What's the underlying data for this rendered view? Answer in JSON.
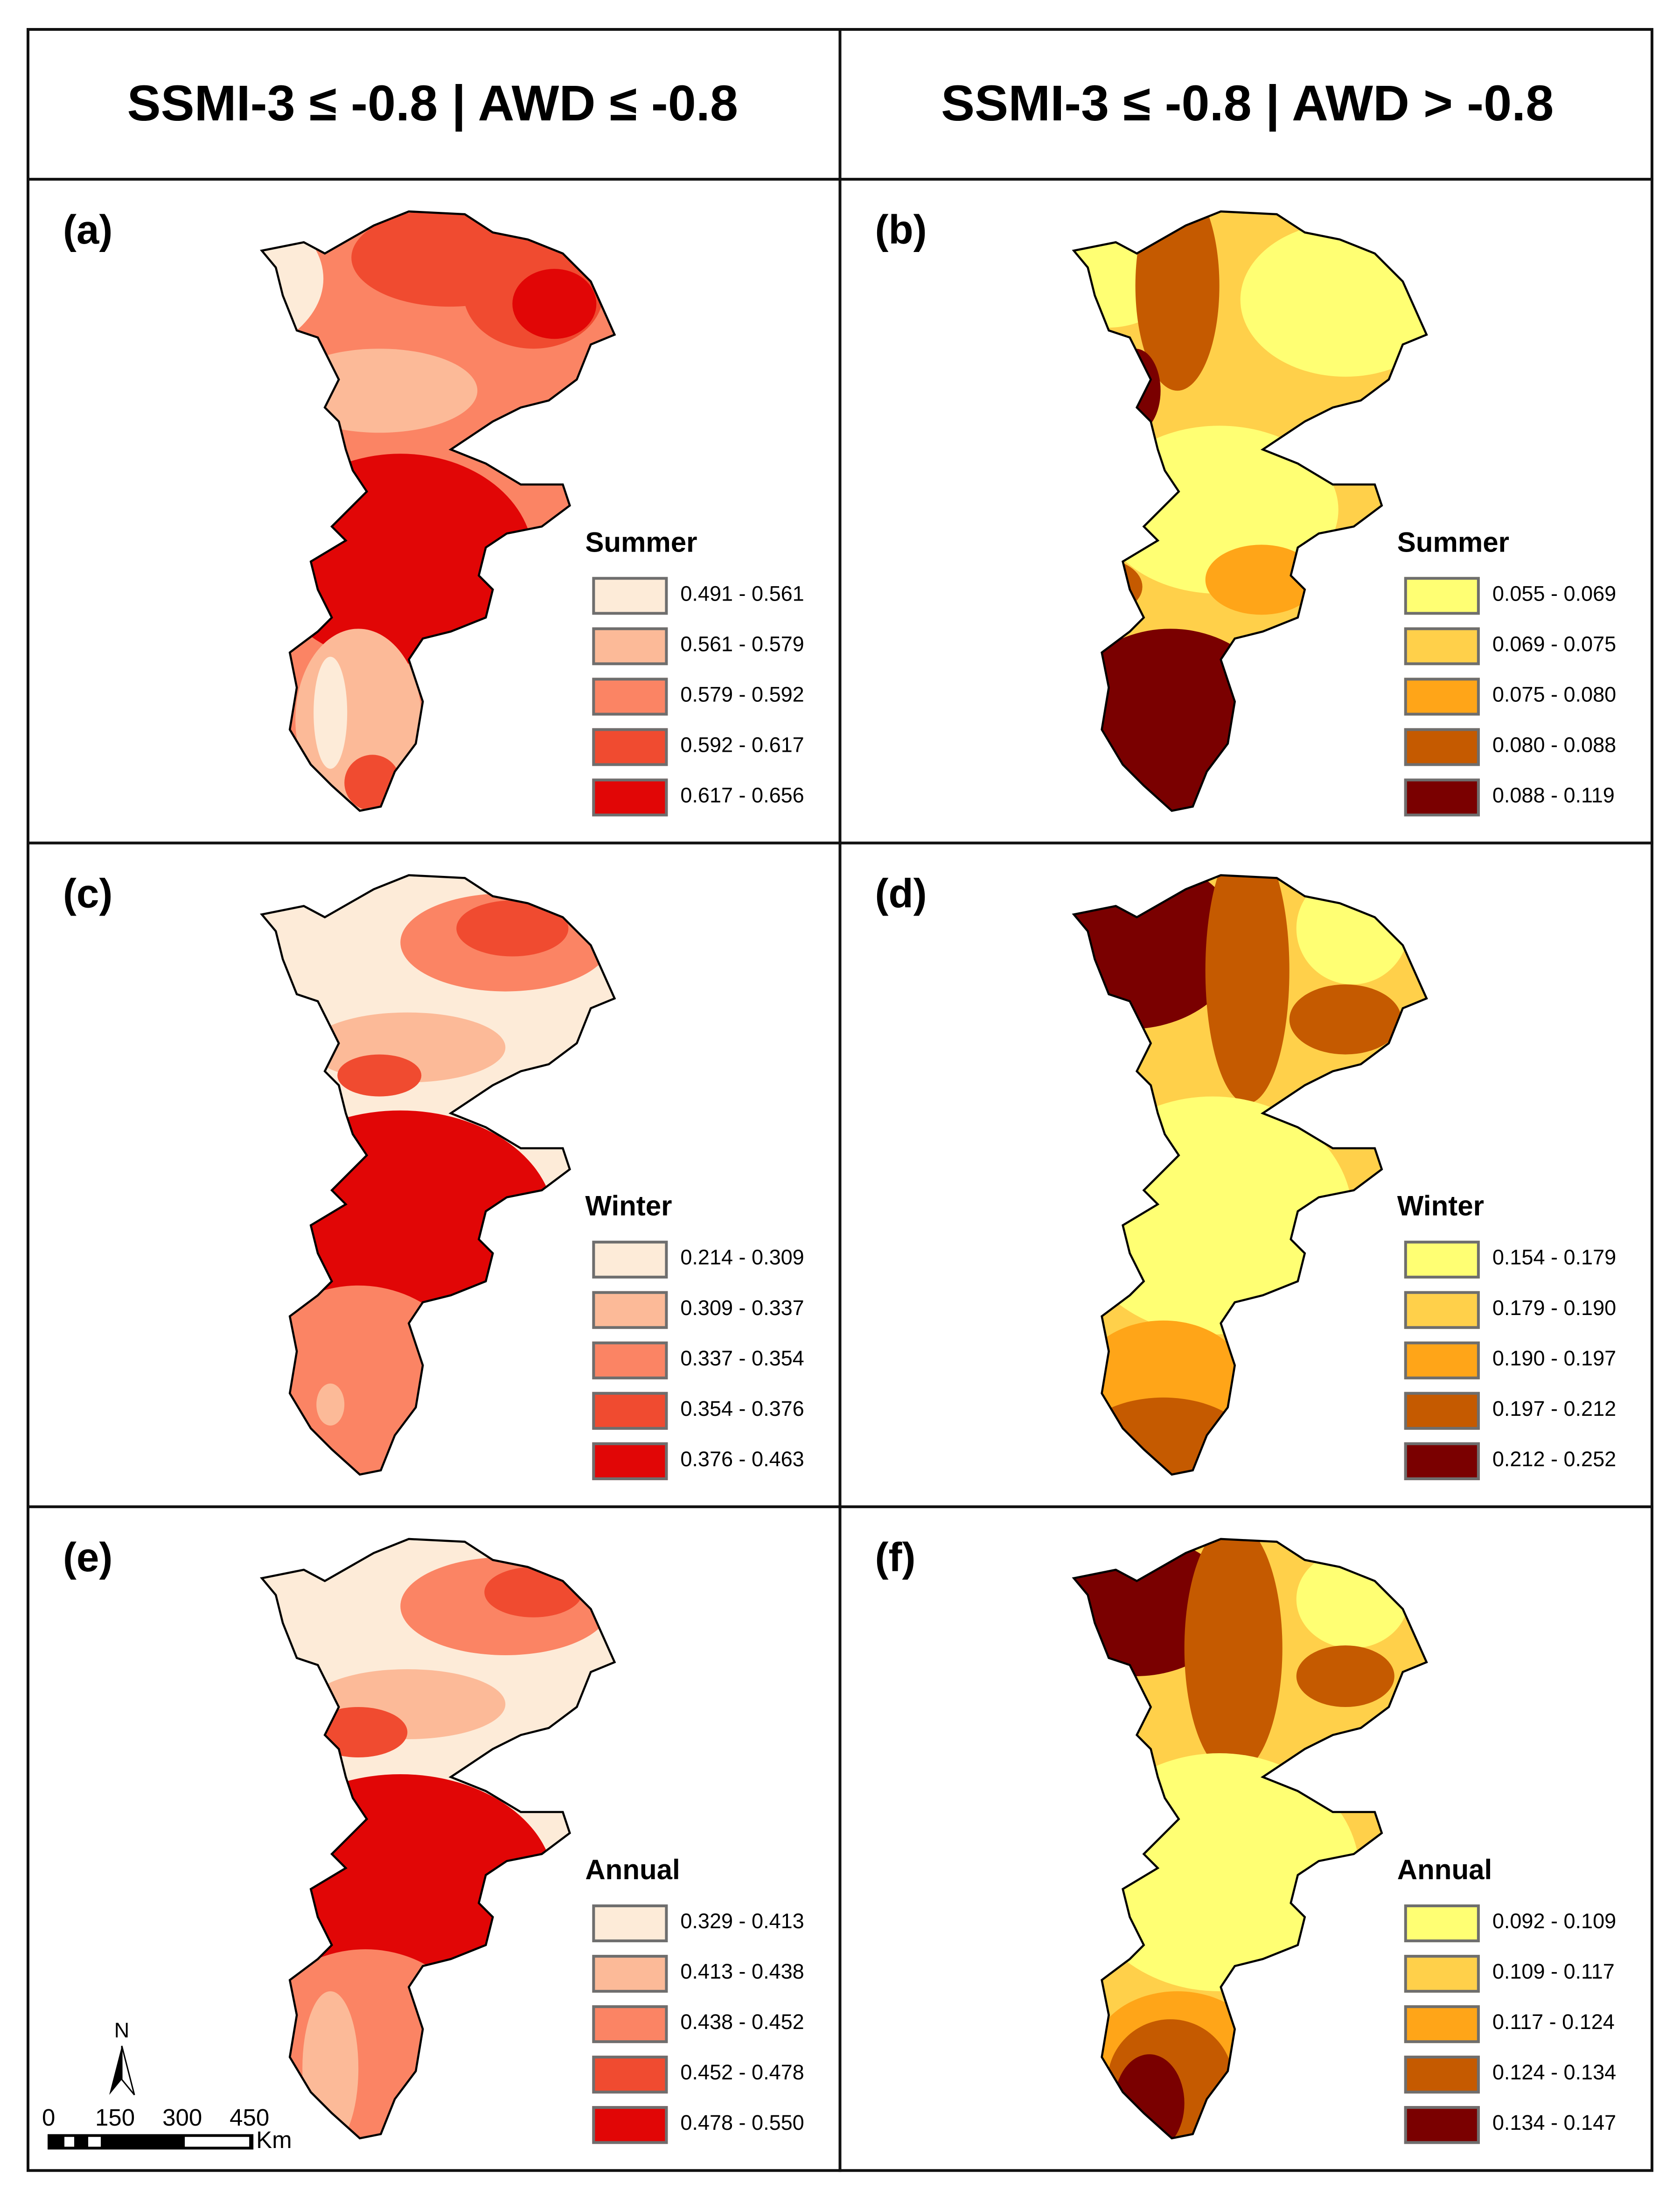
{
  "headers": [
    "SSMI-3 ≤ -0.8 | AWD ≤ -0.8",
    "SSMI-3 ≤ -0.8 | AWD > -0.8"
  ],
  "palettes": {
    "reds": [
      "#fdebd8",
      "#fcba98",
      "#fb8464",
      "#f04b30",
      "#e10606"
    ],
    "ylorbr": [
      "#ffff73",
      "#ffd04a",
      "#ffa518",
      "#c55a00",
      "#7a0000"
    ]
  },
  "panels": [
    {
      "label": "(a)",
      "legend_title": "Summer",
      "palette": "reds",
      "classes": [
        "0.491 - 0.561",
        "0.561 - 0.579",
        "0.579 - 0.592",
        "0.592 - 0.617",
        "0.617 - 0.656"
      ]
    },
    {
      "label": "(b)",
      "legend_title": "Summer",
      "palette": "ylorbr",
      "classes": [
        "0.055 - 0.069",
        "0.069 - 0.075",
        "0.075 - 0.080",
        "0.080 - 0.088",
        "0.088 - 0.119"
      ]
    },
    {
      "label": "(c)",
      "legend_title": "Winter",
      "palette": "reds",
      "classes": [
        "0.214 - 0.309",
        "0.309 - 0.337",
        "0.337 - 0.354",
        "0.354 - 0.376",
        "0.376 - 0.463"
      ]
    },
    {
      "label": "(d)",
      "legend_title": "Winter",
      "palette": "ylorbr",
      "classes": [
        "0.154 - 0.179",
        "0.179 - 0.190",
        "0.190 - 0.197",
        "0.197 - 0.212",
        "0.212 - 0.252"
      ]
    },
    {
      "label": "(e)",
      "legend_title": "Annual",
      "palette": "reds",
      "classes": [
        "0.329 - 0.413",
        "0.413 - 0.438",
        "0.438 - 0.452",
        "0.452 - 0.478",
        "0.478 - 0.550"
      ]
    },
    {
      "label": "(f)",
      "legend_title": "Annual",
      "palette": "ylorbr",
      "classes": [
        "0.092 - 0.109",
        "0.109 - 0.117",
        "0.117 - 0.124",
        "0.124 - 0.134",
        "0.134 - 0.147"
      ]
    }
  ],
  "north_arrow": {
    "label": "N"
  },
  "scale_bar": {
    "ticks": [
      "0",
      "150",
      "300",
      "450"
    ],
    "unit": "Km"
  }
}
